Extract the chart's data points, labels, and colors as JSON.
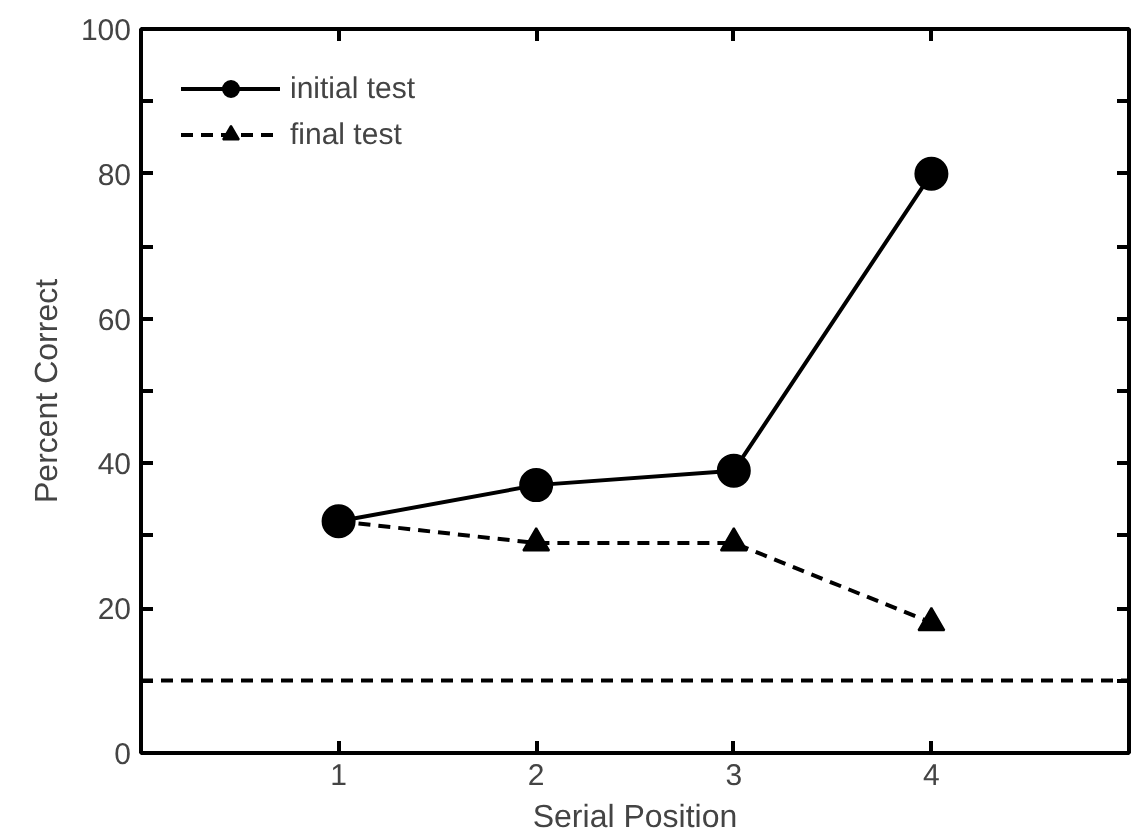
{
  "chart_data": {
    "type": "line",
    "xlabel": "Serial Position",
    "ylabel": "Percent Correct",
    "x": [
      1,
      2,
      3,
      4
    ],
    "series": [
      {
        "name": "initial test",
        "color": "#000000",
        "values": [
          32,
          37,
          39,
          80
        ],
        "marker": "circle",
        "line_style": "solid"
      },
      {
        "name": "final test",
        "color": "#000000",
        "values": [
          32,
          29,
          29,
          18
        ],
        "marker": "triangle",
        "line_style": "dashed"
      }
    ],
    "xlim": [
      0,
      5
    ],
    "xticks": [
      1,
      2,
      3,
      4
    ],
    "ylim": [
      0,
      100
    ],
    "yticks": [
      0,
      {
        "value": 10,
        "label": null
      },
      20,
      {
        "value": 30,
        "label": null
      },
      40,
      {
        "value": 50,
        "label": null
      },
      60,
      {
        "value": 70,
        "label": null
      },
      80,
      {
        "value": 90,
        "label": null
      },
      100
    ],
    "ref_lines": [
      {
        "axis": "y",
        "value": 10,
        "color": "#000000",
        "line_style": "dashed"
      }
    ],
    "grid": false,
    "legend": "top left"
  }
}
